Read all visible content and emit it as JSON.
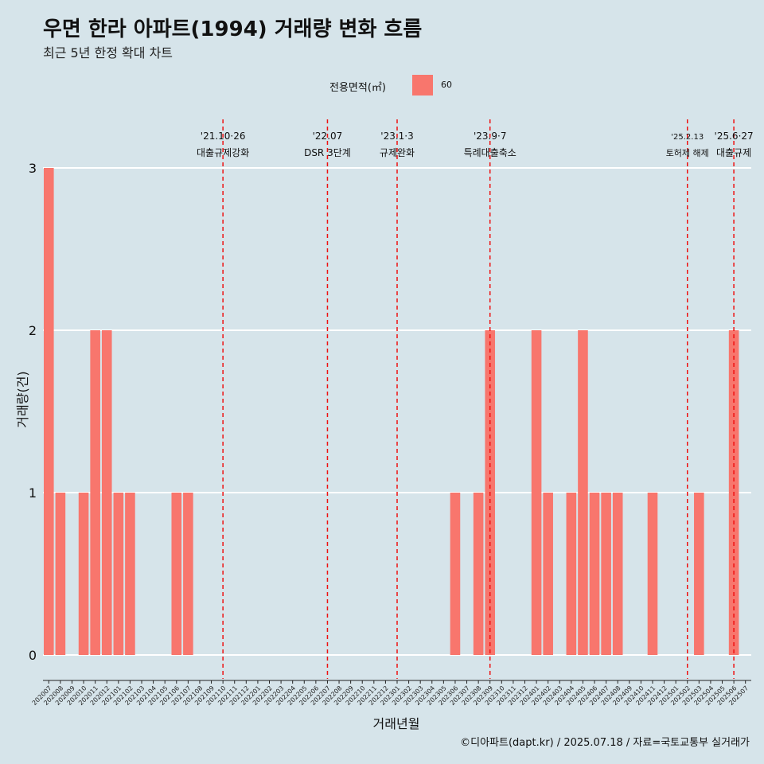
{
  "title": "우면 한라 아파트(1994) 거래량 변화 흐름",
  "subtitle": "최근 5년 한정 확대 차트",
  "caption": "©디아파트(dapt.kr) / 2025.07.18 / 자료=국토교통부 실거래가",
  "colors": {
    "background": "#d6e4ea",
    "bar": "#f8766d",
    "event_line": "#ee1111",
    "grid": "#ffffff"
  },
  "chart_data": {
    "type": "bar",
    "xlabel": "거래년월",
    "ylabel": "거래량(건)",
    "ylim": [
      0,
      3
    ],
    "yticks": [
      0,
      1,
      2,
      3
    ],
    "legend": {
      "title": "전용면적(㎡)",
      "position": "top",
      "entries": [
        "60"
      ]
    },
    "categories": [
      "202007",
      "202008",
      "202009",
      "202010",
      "202011",
      "202012",
      "202101",
      "202102",
      "202103",
      "202104",
      "202105",
      "202106",
      "202107",
      "202108",
      "202109",
      "202110",
      "202111",
      "202112",
      "202201",
      "202202",
      "202203",
      "202204",
      "202205",
      "202206",
      "202207",
      "202208",
      "202209",
      "202210",
      "202211",
      "202212",
      "202301",
      "202302",
      "202303",
      "202304",
      "202305",
      "202306",
      "202307",
      "202308",
      "202309",
      "202310",
      "202311",
      "202312",
      "202401",
      "202402",
      "202403",
      "202404",
      "202405",
      "202406",
      "202407",
      "202408",
      "202409",
      "202410",
      "202411",
      "202412",
      "202501",
      "202502",
      "202503",
      "202504",
      "202505",
      "202506",
      "202507"
    ],
    "series": [
      {
        "name": "60",
        "values": [
          3,
          1,
          0,
          1,
          2,
          2,
          1,
          1,
          0,
          0,
          0,
          1,
          1,
          0,
          0,
          0,
          0,
          0,
          0,
          0,
          0,
          0,
          0,
          0,
          0,
          0,
          0,
          0,
          0,
          0,
          0,
          0,
          0,
          0,
          0,
          1,
          0,
          1,
          2,
          0,
          0,
          0,
          2,
          1,
          0,
          1,
          2,
          1,
          1,
          1,
          0,
          0,
          1,
          0,
          0,
          0,
          1,
          0,
          0,
          2,
          0
        ]
      }
    ],
    "annotations": [
      {
        "at": "202110",
        "date": "'21.10·26",
        "label": "대출규제강화"
      },
      {
        "at": "202207",
        "date": "'22.07",
        "label": "DSR 3단계"
      },
      {
        "at": "202301",
        "date": "'23.1·3",
        "label": "규제완화"
      },
      {
        "at": "202309",
        "date": "'23.9·7",
        "label": "특례대출축소"
      },
      {
        "at": "202502",
        "date": "'25.2.13",
        "label": "토허제 해제"
      },
      {
        "at": "202506",
        "date": "'25.6·27",
        "label": "대출규제"
      }
    ]
  }
}
